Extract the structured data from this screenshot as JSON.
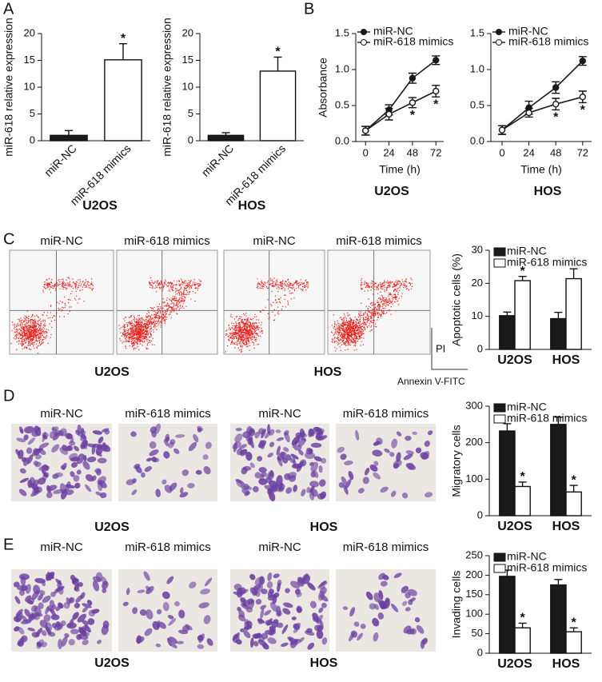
{
  "figure": {
    "panel_labels": [
      "A",
      "B",
      "C",
      "D",
      "E"
    ],
    "flow": {
      "groups": [
        "miR-NC",
        "miR-618 mimics",
        "miR-NC",
        "miR-618 mimics"
      ],
      "cell_lines": [
        "U2OS",
        "HOS"
      ],
      "y_axis": "PI",
      "x_axis": "Annexin V-FITC"
    },
    "migration": {
      "groups": [
        "miR-NC",
        "miR-618 mimics",
        "miR-NC",
        "miR-618 mimics"
      ],
      "cell_lines": [
        "U2OS",
        "HOS"
      ]
    },
    "invasion": {
      "groups": [
        "miR-NC",
        "miR-618 mimics",
        "miR-NC",
        "miR-618 mimics"
      ],
      "cell_lines": [
        "U2OS",
        "HOS"
      ]
    }
  },
  "chart_data": [
    {
      "type": "bar",
      "subtitle": "U2OS",
      "y_label": "miR-618 relative expression",
      "categories": [
        "miR-NC",
        "miR-618 mimics"
      ],
      "values": [
        1,
        15.1
      ],
      "errors": [
        0.9,
        3
      ],
      "colors": [
        "#1a1a1a",
        "#ffffff"
      ],
      "ylim": [
        0,
        20
      ],
      "yticks": [
        0,
        5,
        10,
        15,
        20
      ],
      "annotations": [
        {
          "text": "*",
          "x": "miR-618 mimics"
        }
      ]
    },
    {
      "type": "bar",
      "subtitle": "HOS",
      "y_label": "miR-618 relative expression",
      "categories": [
        "miR-NC",
        "miR-618 mimics"
      ],
      "values": [
        1,
        13
      ],
      "errors": [
        0.5,
        2.6
      ],
      "colors": [
        "#1a1a1a",
        "#ffffff"
      ],
      "ylim": [
        0,
        20
      ],
      "yticks": [
        0,
        5,
        10,
        15,
        20
      ],
      "annotations": [
        {
          "text": "*",
          "x": "miR-618 mimics"
        }
      ]
    },
    {
      "type": "line",
      "subtitle": "U2OS",
      "x_label": "Time (h)",
      "y_label": "Absorbance",
      "x": [
        0,
        24,
        48,
        72
      ],
      "xlim": [
        -10,
        80
      ],
      "xticks": [
        0,
        24,
        48,
        72
      ],
      "ylim": [
        0,
        1.5
      ],
      "yticks": [
        {
          "value": 0,
          "label": "0.0"
        },
        0.5,
        {
          "value": 1,
          "label": "1.0"
        },
        1.5
      ],
      "legend": "upper left",
      "series": [
        {
          "name": "miR-NC",
          "color": "#1a1a1a",
          "marker": "filled",
          "values": [
            0.15,
            0.44,
            0.88,
            1.13
          ],
          "errors": [
            0.06,
            0.07,
            0.07,
            0.06
          ]
        },
        {
          "name": "miR-618 mimics",
          "color": "#1a1a1a",
          "marker": "open",
          "values": [
            0.15,
            0.38,
            0.54,
            0.7
          ],
          "errors": [
            0.06,
            0.08,
            0.07,
            0.08
          ]
        }
      ],
      "annotations": [
        {
          "text": "*",
          "x": 48
        },
        {
          "text": "*",
          "x": 72
        }
      ]
    },
    {
      "type": "line",
      "subtitle": "HOS",
      "x_label": "Time (h)",
      "x": [
        0,
        24,
        48,
        72
      ],
      "xlim": [
        -10,
        80
      ],
      "xticks": [
        0,
        24,
        48,
        72
      ],
      "ylim": [
        0,
        1.5
      ],
      "yticks": [
        {
          "value": 0,
          "label": "0.0"
        },
        0.5,
        {
          "value": 1,
          "label": "1.0"
        },
        1.5
      ],
      "legend": "upper left",
      "series": [
        {
          "name": "miR-NC",
          "color": "#1a1a1a",
          "marker": "filled",
          "values": [
            0.16,
            0.47,
            0.75,
            1.12
          ],
          "errors": [
            0.06,
            0.09,
            0.08,
            0.06
          ]
        },
        {
          "name": "miR-618 mimics",
          "color": "#1a1a1a",
          "marker": "open",
          "values": [
            0.16,
            0.4,
            0.52,
            0.62
          ],
          "errors": [
            0.06,
            0.06,
            0.08,
            0.08
          ]
        }
      ],
      "annotations": [
        {
          "text": "*",
          "x": 48
        },
        {
          "text": "*",
          "x": 72
        }
      ]
    },
    {
      "type": "bar",
      "y_label": "Apoptotic cells (%)",
      "categories": [
        "U2OS",
        "HOS"
      ],
      "ylim": [
        0,
        30
      ],
      "yticks": [
        0,
        10,
        20,
        30
      ],
      "legend": "upper left",
      "series": [
        {
          "name": "miR-NC",
          "color": "#1a1a1a",
          "values": [
            10.2,
            9.3
          ],
          "errors": [
            1.1,
            1.9
          ]
        },
        {
          "name": "miR-618 mimics",
          "color": "#ffffff",
          "values": [
            20.8,
            21.4
          ],
          "errors": [
            1.3,
            3
          ]
        }
      ],
      "annotations": [
        {
          "text": "*",
          "x": "U2OS",
          "series": "miR-618 mimics"
        }
      ]
    },
    {
      "type": "bar",
      "y_label": "Migratory cells",
      "categories": [
        "U2OS",
        "HOS"
      ],
      "ylim": [
        0,
        300
      ],
      "yticks": [
        0,
        100,
        200,
        300
      ],
      "legend": "upper left",
      "series": [
        {
          "name": "miR-NC",
          "color": "#1a1a1a",
          "values": [
            232,
            250
          ],
          "errors": [
            20,
            20
          ]
        },
        {
          "name": "miR-618 mimics",
          "color": "#ffffff",
          "values": [
            80,
            65
          ],
          "errors": [
            12,
            18
          ]
        }
      ],
      "annotations": [
        {
          "text": "*",
          "x": "U2OS",
          "series": "miR-618 mimics"
        },
        {
          "text": "*",
          "x": "HOS",
          "series": "miR-618 mimics"
        }
      ]
    },
    {
      "type": "bar",
      "y_label": "Invading cells",
      "categories": [
        "U2OS",
        "HOS"
      ],
      "ylim": [
        0,
        250
      ],
      "yticks": [
        0,
        50,
        100,
        150,
        200,
        250
      ],
      "legend": "upper left",
      "series": [
        {
          "name": "miR-NC",
          "color": "#1a1a1a",
          "values": [
            197,
            175
          ],
          "errors": [
            16,
            14
          ]
        },
        {
          "name": "miR-618 mimics",
          "color": "#ffffff",
          "values": [
            65,
            55
          ],
          "errors": [
            12,
            10
          ]
        }
      ],
      "annotations": [
        {
          "text": "*",
          "x": "U2OS",
          "series": "miR-618 mimics"
        },
        {
          "text": "*",
          "x": "HOS",
          "series": "miR-618 mimics"
        }
      ]
    }
  ]
}
